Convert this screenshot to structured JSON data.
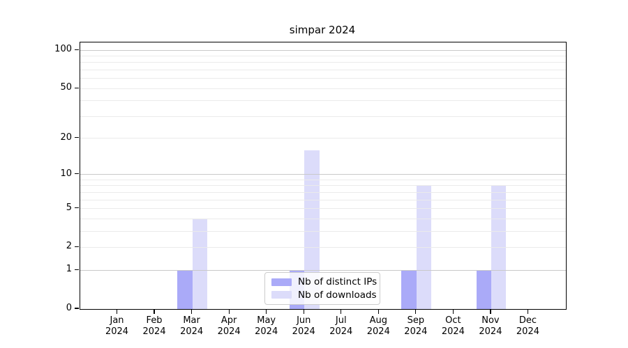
{
  "chart_data": {
    "type": "bar",
    "title": "simpar 2024",
    "categories": [
      "Jan 2024",
      "Feb 2024",
      "Mar 2024",
      "Apr 2024",
      "May 2024",
      "Jun 2024",
      "Jul 2024",
      "Aug 2024",
      "Sep 2024",
      "Oct 2024",
      "Nov 2024",
      "Dec 2024"
    ],
    "series": [
      {
        "name": "Nb of distinct IPs",
        "color": "#aaaaf8",
        "values": [
          0,
          0,
          1,
          0,
          0,
          1,
          0,
          0,
          1,
          0,
          1,
          0
        ]
      },
      {
        "name": "Nb of downloads",
        "color": "#dcdcfa",
        "values": [
          0,
          0,
          4,
          0,
          0,
          16,
          0,
          0,
          8,
          0,
          8,
          0
        ]
      }
    ],
    "xlabel": "",
    "ylabel": "",
    "y_axis": {
      "scale": "log1p",
      "ticks": [
        0,
        1,
        2,
        5,
        10,
        20,
        50,
        100
      ],
      "range": [
        0,
        115
      ]
    },
    "grid": {
      "major_lines": [
        1,
        10,
        100
      ],
      "minor_lines": [
        2,
        3,
        4,
        5,
        6,
        7,
        8,
        9,
        20,
        30,
        40,
        50,
        60,
        70,
        80,
        90
      ],
      "major_color": "#c9c9c9",
      "minor_color": "#ebebeb"
    },
    "legend": {
      "position": "bottom-center",
      "items": [
        "Nb of distinct IPs",
        "Nb of downloads"
      ]
    },
    "axis_color": "#000000",
    "background_color": "#ffffff"
  }
}
